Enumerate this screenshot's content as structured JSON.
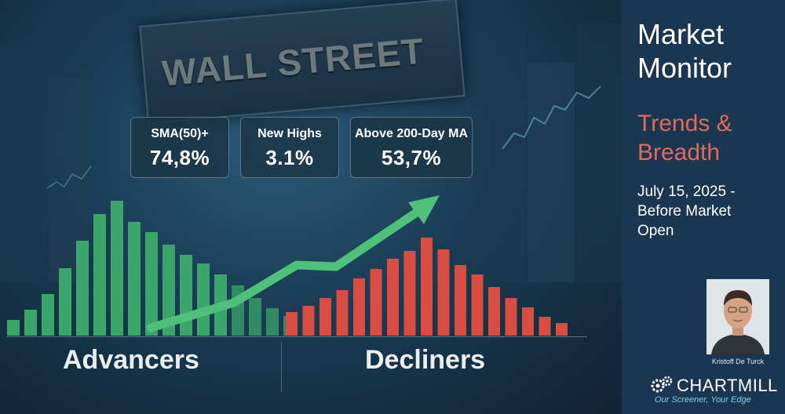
{
  "hero": {
    "sign": "WALL STREET",
    "stats": [
      {
        "label": "SMA(50)+",
        "value": "74,8%"
      },
      {
        "label": "New Highs",
        "value": "3.1%"
      },
      {
        "label": "Above 200-Day MA",
        "value": "53,7%"
      }
    ],
    "advancers_label": "Advancers",
    "decliners_label": "Decliners",
    "colors": {
      "advancers": "#3aa66a",
      "decliners": "#d84c42",
      "arrow": "#4fc07a"
    }
  },
  "sidebar": {
    "title_line1": "Market",
    "title_line2": "Monitor",
    "subtitle_line1": "Trends &",
    "subtitle_line2": "Breadth",
    "date_line1": "July 15, 2025 -",
    "date_line2": "Before Market",
    "date_line3": "Open",
    "author": "Kristoff De Turck",
    "logo_text": "CHARTMILL",
    "tagline": "Our Screener, Your Edge",
    "colors": {
      "background": "#1b3650",
      "subtitle": "#e06b5a",
      "tagline": "#7fd0f0"
    }
  }
}
